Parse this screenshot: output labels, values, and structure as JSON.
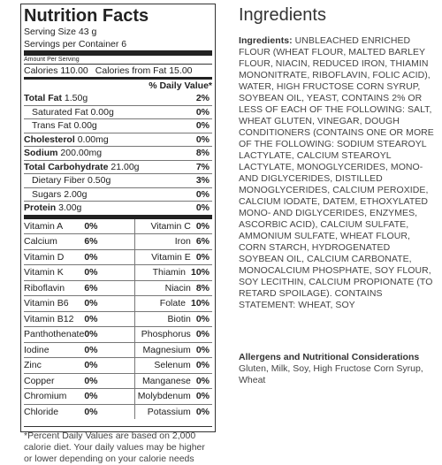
{
  "nutrition": {
    "title": "Nutrition Facts",
    "serving_size": "Serving Size 43 g",
    "servings_per_container": "Servings per Container  6",
    "amount_per_serving": "Amount Per Serving",
    "calories": "Calories 110.00",
    "calories_from_fat": "Calories from Fat 15.00",
    "dv_header": "% Daily Value*",
    "rows": [
      {
        "label": "Total Fat",
        "value": "1.50g",
        "pct": "2%",
        "bold": true,
        "indent": false
      },
      {
        "label": "Saturated Fat",
        "value": "0.00g",
        "pct": "0%",
        "bold": false,
        "indent": true
      },
      {
        "label": "Trans Fat",
        "value": "0.00g",
        "pct": "0%",
        "bold": false,
        "indent": true
      },
      {
        "label": "Cholesterol",
        "value": "0.00mg",
        "pct": "0%",
        "bold": true,
        "indent": false
      },
      {
        "label": "Sodium",
        "value": "200.00mg",
        "pct": "8%",
        "bold": true,
        "indent": false
      },
      {
        "label": "Total Carbohydrate",
        "value": "21.00g",
        "pct": "7%",
        "bold": true,
        "indent": false
      },
      {
        "label": "Dietary Fiber",
        "value": "0.50g",
        "pct": "3%",
        "bold": false,
        "indent": true
      },
      {
        "label": "Sugars",
        "value": "2.00g",
        "pct": "0%",
        "bold": false,
        "indent": true
      },
      {
        "label": "Protein",
        "value": "3.00g",
        "pct": "0%",
        "bold": true,
        "indent": false
      }
    ],
    "vitamins": [
      {
        "left_name": "Vitamin A",
        "left_pct": "0%",
        "right_name": "Vitamin C",
        "right_pct": "0%"
      },
      {
        "left_name": "Calcium",
        "left_pct": "6%",
        "right_name": "Iron",
        "right_pct": "6%"
      },
      {
        "left_name": "Vitamin D",
        "left_pct": "0%",
        "right_name": "Vitamin E",
        "right_pct": "0%"
      },
      {
        "left_name": "Vitamin K",
        "left_pct": "0%",
        "right_name": "Thiamin",
        "right_pct": "10%"
      },
      {
        "left_name": "Riboflavin",
        "left_pct": "6%",
        "right_name": "Niacin",
        "right_pct": "8%"
      },
      {
        "left_name": "Vitamin B6",
        "left_pct": "0%",
        "right_name": "Folate",
        "right_pct": "10%"
      },
      {
        "left_name": "Vitamin B12",
        "left_pct": "0%",
        "right_name": "Biotin",
        "right_pct": "0%"
      },
      {
        "left_name": "Panthothenate",
        "left_pct": "0%",
        "right_name": "Phosphorus",
        "right_pct": "0%"
      },
      {
        "left_name": "Iodine",
        "left_pct": "0%",
        "right_name": "Magnesium",
        "right_pct": "0%"
      },
      {
        "left_name": "Zinc",
        "left_pct": "0%",
        "right_name": "Selenum",
        "right_pct": "0%"
      },
      {
        "left_name": "Copper",
        "left_pct": "0%",
        "right_name": "Manganese",
        "right_pct": "0%"
      },
      {
        "left_name": "Chromium",
        "left_pct": "0%",
        "right_name": "Molybdenum",
        "right_pct": "0%"
      },
      {
        "left_name": "Chloride",
        "left_pct": "0%",
        "right_name": "Potassium",
        "right_pct": "0%"
      }
    ],
    "footnote": "*Percent Daily Values are based on 2,000 calorie diet. Your daily values may be higher or lower depending on your calorie needs"
  },
  "ingredients": {
    "title": "Ingredients",
    "label": "Ingredients:",
    "text": "UNBLEACHED ENRICHED FLOUR (WHEAT FLOUR, MALTED BARLEY FLOUR, NIACIN, REDUCED IRON, THIAMIN MONONITRATE, RIBOFLAVIN, FOLIC ACID), WATER, HIGH FRUCTOSE CORN SYRUP, SOYBEAN OIL, YEAST, CONTAINS 2% OR LESS OF EACH OF THE FOLLOWING: SALT, WHEAT GLUTEN, VINEGAR, DOUGH CONDITIONERS (CONTAINS ONE OR MORE OF THE FOLLOWING: SODIUM STEAROYL LACTYLATE, CALCIUM STEAROYL LACTYLATE, MONOGLYCERIDES, MONO- AND DIGLYCERIDES, DISTILLED MONOGLYCERIDES, CALCIUM PEROXIDE, CALCIUM IODATE, DATEM, ETHOXYLATED MONO- AND DIGLYCERIDES, ENZYMES, ASCORBIC ACID), CALCIUM SULFATE, AMMONIUM SULFATE, WHEAT FLOUR, CORN STARCH, HYDROGENATED SOYBEAN OIL, CALCIUM CARBONATE, MONOCALCIUM PHOSPHATE, SOY FLOUR, SOY LECITHIN, CALCIUM PROPIONATE (TO RETARD SPOILAGE). CONTAINS STATEMENT: WHEAT, SOY"
  },
  "allergens": {
    "title": "Allergens and Nutritional Considerations",
    "text": "Gluten, Milk, Soy, High Fructose Corn Syrup, Wheat"
  }
}
